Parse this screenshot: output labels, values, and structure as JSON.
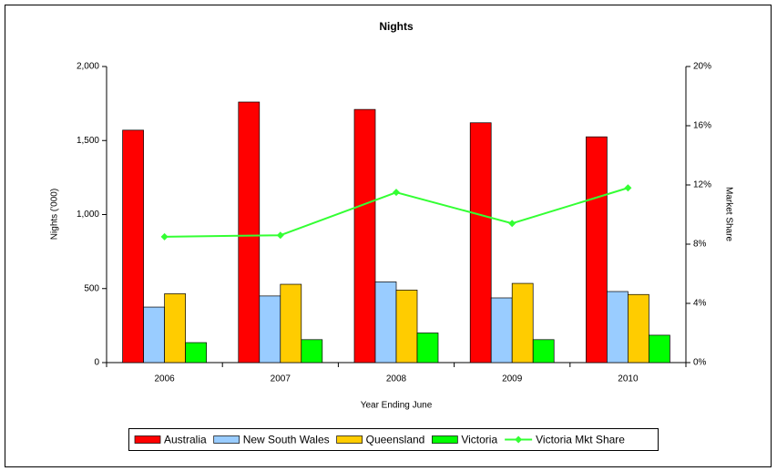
{
  "chart_data": {
    "type": "bar",
    "title": "Nights",
    "x_label": "Year Ending June",
    "y_label": "Nights ('000)",
    "y2_label": "Market Share",
    "categories": [
      "2006",
      "2007",
      "2008",
      "2009",
      "2010"
    ],
    "series": [
      {
        "name": "Australia",
        "color": "#ff0000",
        "values": [
          1570,
          1760,
          1710,
          1620,
          1525
        ]
      },
      {
        "name": "New South Wales",
        "color": "#99ccff",
        "values": [
          375,
          450,
          545,
          437,
          480
        ]
      },
      {
        "name": "Queensland",
        "color": "#ffcc00",
        "values": [
          465,
          529,
          490,
          535,
          460
        ]
      },
      {
        "name": "Victoria",
        "color": "#00ff00",
        "values": [
          135,
          155,
          200,
          155,
          185
        ]
      },
      {
        "name": "Victoria Mkt Share",
        "type": "line",
        "axis": "y2",
        "color": "#33ff33",
        "values": [
          8.5,
          8.6,
          11.5,
          9.4,
          11.8
        ]
      }
    ],
    "ylim": [
      0,
      2000
    ],
    "yticks": [
      0,
      500,
      {
        "value": 1000,
        "label": "1,000"
      },
      {
        "value": 1500,
        "label": "1,500"
      },
      {
        "value": 2000,
        "label": "2,000"
      }
    ],
    "y2lim": [
      0,
      20
    ],
    "y2ticks": [
      {
        "value": 0,
        "label": "0%"
      },
      {
        "value": 4,
        "label": "4%"
      },
      {
        "value": 8,
        "label": "8%"
      },
      {
        "value": 12,
        "label": "12%"
      },
      {
        "value": 16,
        "label": "16%"
      },
      {
        "value": 20,
        "label": "20%"
      }
    ],
    "legend": "bottom",
    "grid": false
  }
}
